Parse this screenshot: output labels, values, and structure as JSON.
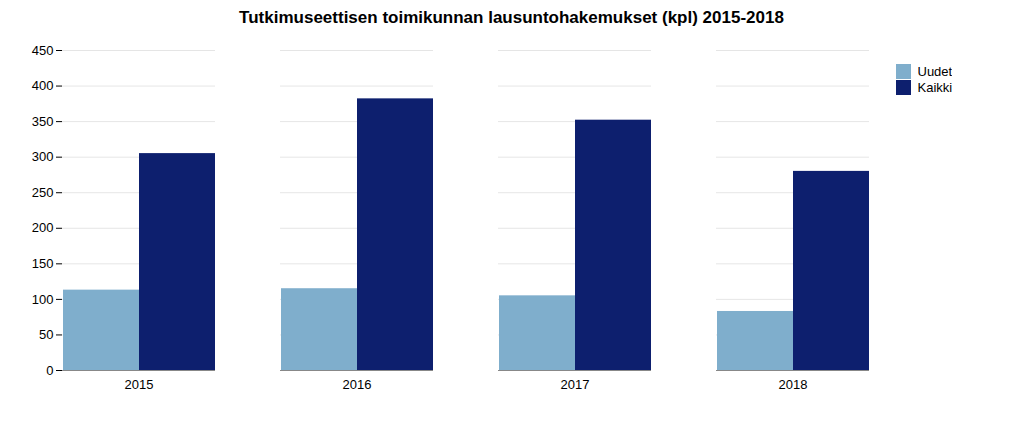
{
  "chart_data": {
    "type": "bar",
    "title": "Tutkimuseettisen toimikunnan lausuntohakemukset (kpl) 2015-2018",
    "categories": [
      "2015",
      "2016",
      "2017",
      "2018"
    ],
    "series": [
      {
        "name": "Uudet",
        "color": "#7FAECC",
        "values": [
          113,
          115,
          105,
          83
        ]
      },
      {
        "name": "Kaikki",
        "color": "#0D1F6E",
        "values": [
          305,
          382,
          352,
          280
        ]
      }
    ],
    "ylim": [
      0,
      450
    ],
    "yticks": [
      0,
      50,
      100,
      150,
      200,
      250,
      300,
      350,
      400,
      450
    ],
    "grid": true,
    "legend": "right"
  }
}
